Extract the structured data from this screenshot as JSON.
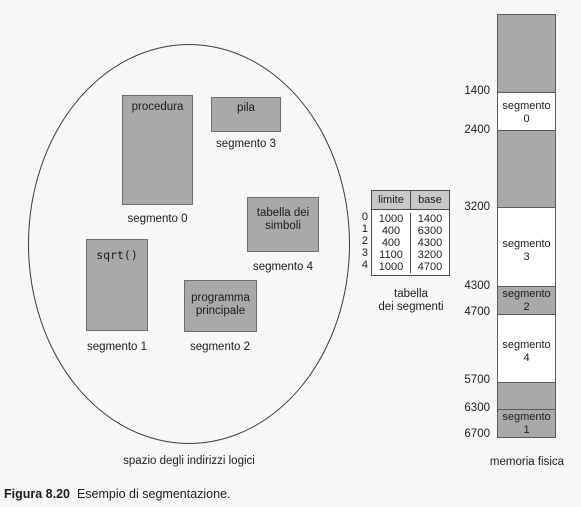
{
  "logical_space": {
    "segments": [
      {
        "block_label": "procedura",
        "caption": "segmento 0"
      },
      {
        "block_label": "sqrt()",
        "caption": "segmento 1"
      },
      {
        "block_label": "programma principale",
        "caption": "segmento 2"
      },
      {
        "block_label": "pila",
        "caption": "segmento 3"
      },
      {
        "block_label": "tabella dei simboli",
        "caption": "segmento 4"
      }
    ],
    "label": "spazio degli indirizzi logici"
  },
  "segment_table": {
    "headers": [
      "limite",
      "base"
    ],
    "indices": [
      "0",
      "1",
      "2",
      "3",
      "4"
    ],
    "limits": [
      "1000",
      "400",
      "400",
      "1100",
      "1000"
    ],
    "bases": [
      "1400",
      "6300",
      "4300",
      "3200",
      "4700"
    ],
    "caption_line1": "tabella",
    "caption_line2": "dei segmenti"
  },
  "physical_memory": {
    "addresses": [
      "1400",
      "2400",
      "3200",
      "4300",
      "4700",
      "5700",
      "6300",
      "6700"
    ],
    "blocks": [
      {
        "label_line1": "segmento",
        "label_line2": "0"
      },
      {
        "label_line1": "segmento",
        "label_line2": "3"
      },
      {
        "label_line1": "segmento",
        "label_line2": "2"
      },
      {
        "label_line1": "segmento",
        "label_line2": "4"
      },
      {
        "label_line1": "segmento",
        "label_line2": "1"
      }
    ],
    "label": "memoria fisica"
  },
  "figure_caption": {
    "number": "Figura 8.20",
    "text": "Esempio di segmentazione."
  }
}
